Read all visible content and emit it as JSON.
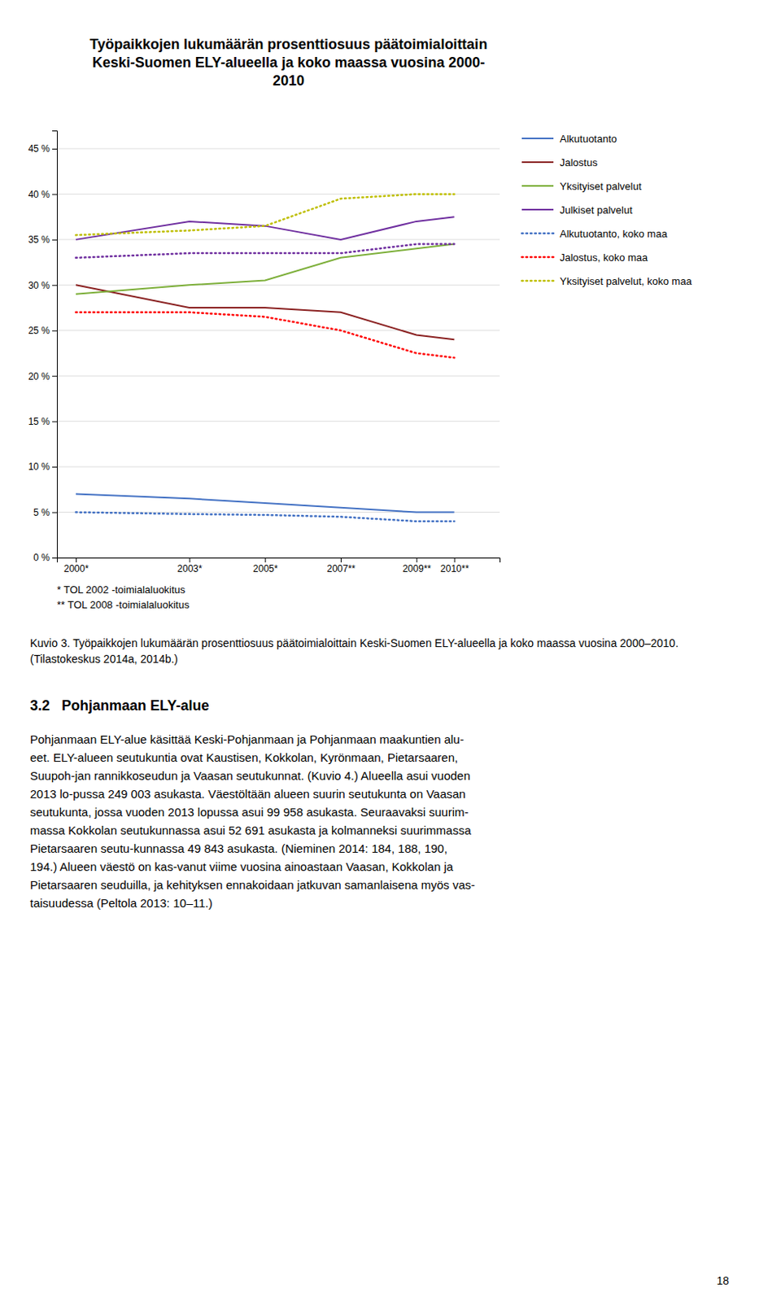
{
  "chart_data": {
    "type": "line",
    "title": "Työpaikkojen lukumäärän prosenttiosuus päätoimialoittain\nKeski-Suomen ELY-alueella ja koko maassa vuosina 2000-\n2010",
    "x": [
      2000,
      2003,
      2005,
      2007,
      2009,
      2010
    ],
    "xlim": [
      1999.5,
      2011.2
    ],
    "xticks": [
      {
        "value": 2000,
        "label": "2000*"
      },
      {
        "value": 2003,
        "label": "2003*"
      },
      {
        "value": 2005,
        "label": "2005*"
      },
      {
        "value": 2007,
        "label": "2007**"
      },
      {
        "value": 2009,
        "label": "2009**"
      },
      {
        "value": 2010,
        "label": "2010**"
      }
    ],
    "ylim": [
      0,
      47
    ],
    "yticks": [
      {
        "value": 0,
        "label": "0 %"
      },
      {
        "value": 5,
        "label": "5 %"
      },
      {
        "value": 10,
        "label": "10 %"
      },
      {
        "value": 15,
        "label": "15 %"
      },
      {
        "value": 20,
        "label": "20 %"
      },
      {
        "value": 25,
        "label": "25 %"
      },
      {
        "value": 30,
        "label": "30 %"
      },
      {
        "value": 35,
        "label": "35 %"
      },
      {
        "value": 40,
        "label": "40 %"
      },
      {
        "value": 45,
        "label": "45 %"
      }
    ],
    "grid": true,
    "series": [
      {
        "name": "Alkutuotanto",
        "color": "#4472C4",
        "line_style": "solid",
        "values": [
          7.0,
          6.5,
          6.0,
          5.5,
          5.0,
          5.0
        ]
      },
      {
        "name": "Jalostus",
        "color": "#8B2222",
        "line_style": "solid",
        "values": [
          30.0,
          27.5,
          27.5,
          27.0,
          24.5,
          24.0
        ]
      },
      {
        "name": "Yksityiset palvelut",
        "color": "#7DAF3A",
        "line_style": "solid",
        "values": [
          29.0,
          30.0,
          30.5,
          33.0,
          34.0,
          34.5
        ]
      },
      {
        "name": "Julkiset palvelut",
        "color": "#7030A0",
        "line_style": "solid",
        "values": [
          35.0,
          37.0,
          36.5,
          35.0,
          37.0,
          37.5
        ]
      },
      {
        "name": "Alkutuotanto, koko maa",
        "color": "#4472C4",
        "line_style": "dotted",
        "values": [
          5.0,
          4.8,
          4.7,
          4.5,
          4.0,
          4.0
        ]
      },
      {
        "name": "Jalostus, koko maa",
        "color": "#FF0000",
        "line_style": "dotted",
        "values": [
          27.0,
          27.0,
          26.5,
          25.0,
          22.5,
          22.0
        ]
      },
      {
        "name": "Yksityiset palvelut, koko maa",
        "color": "#BFBF00",
        "line_style": "dotted",
        "values": [
          35.5,
          36.0,
          36.5,
          39.5,
          40.0,
          40.0
        ]
      },
      {
        "color": "#7030A0",
        "line_style": "dotted",
        "values": [
          33.0,
          33.5,
          33.5,
          33.5,
          34.5,
          34.5
        ]
      }
    ],
    "annotations": [
      "* TOL 2002 -toimialaluokitus",
      "** TOL 2008 -toimialaluokitus"
    ]
  },
  "caption": "Kuvio 3. Työpaikkojen lukumäärän prosenttiosuus päätoimialoittain Keski-Suomen ELY-alueella ja koko maassa vuosina 2000–2010. (Tilastokeskus 2014a, 2014b.)",
  "heading": "3.2   Pohjanmaan ELY-alue",
  "body": "Pohjanmaan ELY-alue käsittää Keski-Pohjanmaan ja Pohjanmaan maakuntien alu-\neet. ELY-alueen seutukuntia ovat Kaustisen, Kokkolan, Kyrönmaan, Pietarsaaren,\nSuupoh-jan rannikkoseudun ja Vaasan seutukunnat. (Kuvio 4.) Alueella asui vuoden\n2013 lo-pussa 249 003 asukasta. Väestöltään alueen suurin seutukunta on Vaasan\nseutukunta, jossa vuoden 2013 lopussa asui 99 958 asukasta. Seuraavaksi suurim-\nmassa Kokkolan seutukunnassa asui 52 691 asukasta ja kolmanneksi suurimmassa\nPietarsaaren seutu-kunnassa 49 843 asukasta. (Nieminen 2014: 184, 188, 190,\n194.) Alueen väestö on kas-vanut viime vuosina ainoastaan Vaasan, Kokkolan ja\nPietarsaaren seuduilla, ja kehityksen ennakoidaan jatkuvan samanlaisena myös vas-\ntaisuudessa (Peltola 2013: 10–11.)",
  "page_number": "18"
}
